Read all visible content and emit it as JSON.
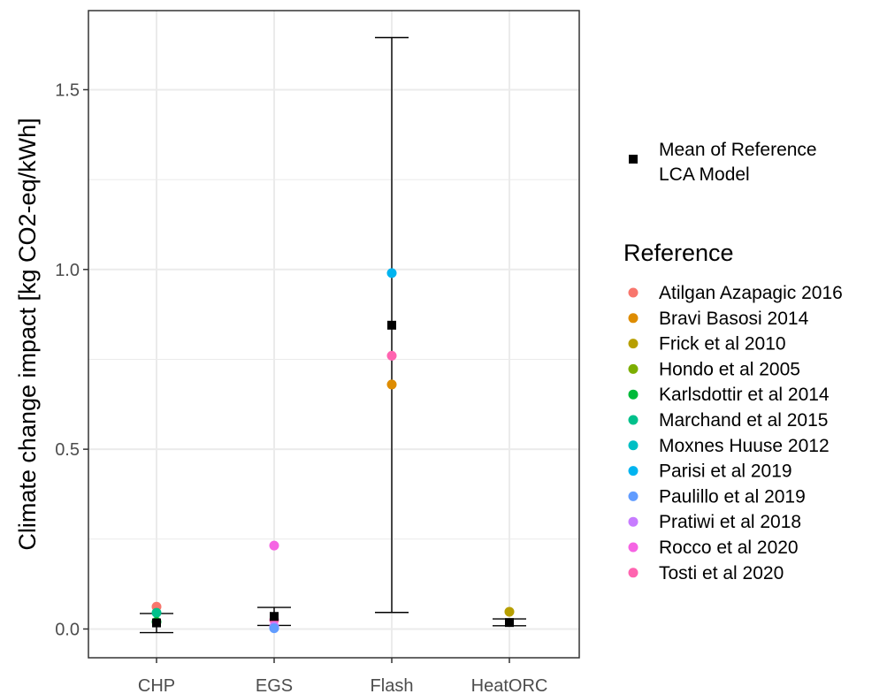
{
  "chart_data": {
    "type": "scatter",
    "ylabel": "Climate change impact [kg CO2-eq/kWh]",
    "xlabel": "",
    "categories": [
      "CHP",
      "EGS",
      "Flash",
      "HeatORC"
    ],
    "yticks": [
      "0.0",
      "0.5",
      "1.0",
      "1.5"
    ],
    "ylim": [
      -0.08,
      1.72
    ],
    "grid": true,
    "legend_position": "right",
    "mean_legend_label": "Mean of Reference LCA Model",
    "mean_legend_lines": [
      "Mean of Reference",
      "LCA Model"
    ],
    "reference_legend_title": "Reference",
    "references": [
      {
        "name": "Atilgan Azapagic 2016",
        "color": "#F8766D"
      },
      {
        "name": "Bravi Basosi 2014",
        "color": "#DE8C00"
      },
      {
        "name": "Frick et al 2010",
        "color": "#B79F00"
      },
      {
        "name": "Hondo et al 2005",
        "color": "#7CAE00"
      },
      {
        "name": "Karlsdottir et al 2014",
        "color": "#00BA38"
      },
      {
        "name": "Marchand et al 2015",
        "color": "#00C08B"
      },
      {
        "name": "Moxnes Huuse 2012",
        "color": "#00BFC4"
      },
      {
        "name": "Parisi et al 2019",
        "color": "#00B4F0"
      },
      {
        "name": "Paulillo et al 2019",
        "color": "#619CFF"
      },
      {
        "name": "Pratiwi et al 2018",
        "color": "#C77CFF"
      },
      {
        "name": "Rocco et al 2020",
        "color": "#F564E3"
      },
      {
        "name": "Tosti et al 2020",
        "color": "#FF64B0"
      }
    ],
    "means": [
      {
        "category": "CHP",
        "mean": 0.017,
        "low": -0.01,
        "high": 0.043
      },
      {
        "category": "EGS",
        "mean": 0.035,
        "low": 0.01,
        "high": 0.06
      },
      {
        "category": "Flash",
        "mean": 0.845,
        "low": 0.046,
        "high": 1.645
      },
      {
        "category": "HeatORC",
        "mean": 0.018,
        "low": 0.009,
        "high": 0.028
      }
    ],
    "points": [
      {
        "category": "CHP",
        "reference": "Atilgan Azapagic 2016",
        "value": 0.062
      },
      {
        "category": "CHP",
        "reference": "Marchand et al 2015",
        "value": 0.045
      },
      {
        "category": "CHP",
        "reference": "Karlsdottir et al 2014",
        "value": 0.02
      },
      {
        "category": "EGS",
        "reference": "Rocco et al 2020",
        "value": 0.232
      },
      {
        "category": "EGS",
        "reference": "Tosti et al 2020",
        "value": 0.025
      },
      {
        "category": "EGS",
        "reference": "Pratiwi et al 2018",
        "value": 0.007
      },
      {
        "category": "EGS",
        "reference": "Paulillo et al 2019",
        "value": 0.002
      },
      {
        "category": "Flash",
        "reference": "Parisi et al 2019",
        "value": 0.99
      },
      {
        "category": "Flash",
        "reference": "Tosti et al 2020",
        "value": 0.76
      },
      {
        "category": "Flash",
        "reference": "Bravi Basosi 2014",
        "value": 0.68
      },
      {
        "category": "HeatORC",
        "reference": "Frick et al 2010",
        "value": 0.048
      }
    ]
  }
}
